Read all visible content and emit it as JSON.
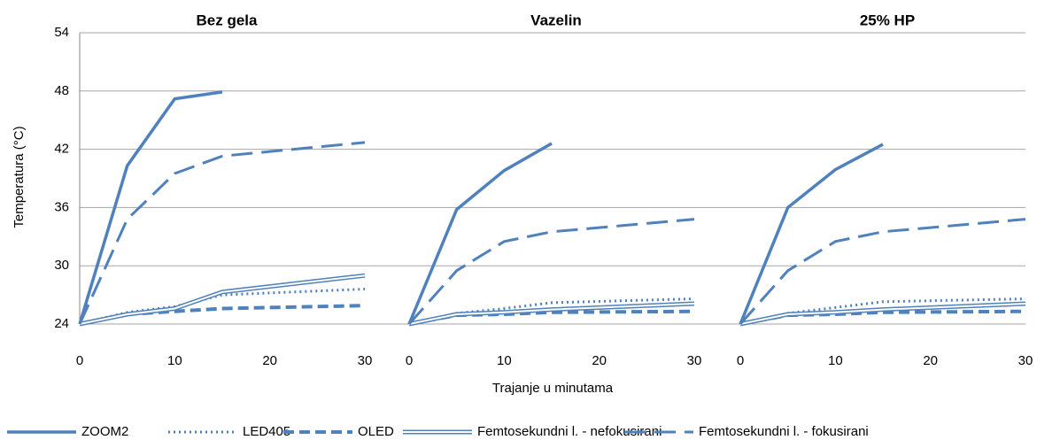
{
  "chart_data": {
    "type": "line",
    "ylabel": "Temperatura (°C)",
    "xlabel": "Trajanje u minutama",
    "ylim": [
      24,
      54
    ],
    "yticks": [
      24,
      30,
      36,
      42,
      48,
      54
    ],
    "xlim": [
      0,
      30
    ],
    "xticks": [
      0,
      10,
      20,
      30
    ],
    "grid": true,
    "legend": "bottom",
    "x": [
      0,
      5,
      10,
      15,
      30
    ],
    "series": [
      {
        "name": "ZOOM2",
        "color": "#4f81bd",
        "style": "solid"
      },
      {
        "name": "LED405",
        "color": "#4f81bd",
        "style": "dotted"
      },
      {
        "name": "OLED",
        "color": "#4f81bd",
        "style": "dashed"
      },
      {
        "name": "Femtosekundni l. - nefokusirani",
        "color": "#4f81bd",
        "style": "double"
      },
      {
        "name": "Femtosekundni l. - fokusirani",
        "color": "#4f81bd",
        "style": "long-dash"
      }
    ],
    "panels": [
      {
        "title": "Bez gela",
        "values": [
          [
            24,
            40.3,
            47.2,
            47.9,
            null
          ],
          [
            24,
            25.2,
            25.8,
            27.0,
            27.6
          ],
          [
            24,
            25.0,
            25.3,
            25.6,
            25.9
          ],
          [
            24,
            25.0,
            25.6,
            27.3,
            29.0
          ],
          [
            24,
            34.8,
            39.5,
            41.3,
            42.7
          ]
        ]
      },
      {
        "title": "Vazelin",
        "values": [
          [
            24,
            35.8,
            39.8,
            42.6,
            null
          ],
          [
            24,
            25.1,
            25.6,
            26.2,
            26.6
          ],
          [
            24,
            24.9,
            25.0,
            25.2,
            25.3
          ],
          [
            24,
            25.0,
            25.2,
            25.5,
            26.1
          ],
          [
            24,
            29.5,
            32.5,
            33.5,
            34.8
          ]
        ]
      },
      {
        "title": "25% HP",
        "values": [
          [
            24,
            36.0,
            39.9,
            42.5,
            null
          ],
          [
            24,
            25.1,
            25.7,
            26.3,
            26.6
          ],
          [
            24,
            24.9,
            25.0,
            25.2,
            25.3
          ],
          [
            24,
            25.0,
            25.2,
            25.5,
            26.1
          ],
          [
            24,
            29.5,
            32.5,
            33.5,
            34.8
          ]
        ]
      }
    ]
  }
}
